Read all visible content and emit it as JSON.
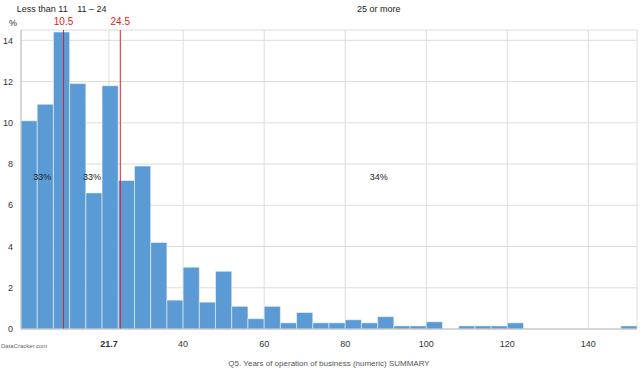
{
  "chart_data": {
    "type": "histogram",
    "xlabel": "Q5. Years of operation of business (numeric) SUMMARY",
    "ylabel": "%",
    "source": "DataCracker.com",
    "bins": [
      0,
      4,
      8,
      12,
      16,
      20,
      24,
      28,
      32,
      36,
      40,
      44,
      48,
      52,
      56,
      60,
      64,
      68,
      72,
      76,
      80,
      84,
      88,
      92,
      96,
      100,
      104,
      108,
      112,
      116,
      120,
      124,
      128,
      132,
      136,
      140,
      144,
      148,
      152
    ],
    "values": [
      10.1,
      10.9,
      14.4,
      11.9,
      6.6,
      11.8,
      7.2,
      7.9,
      4.2,
      1.4,
      3.0,
      1.3,
      2.8,
      1.1,
      0.5,
      1.1,
      0.3,
      0.8,
      0.3,
      0.3,
      0.45,
      0.3,
      0.6,
      0.15,
      0.15,
      0.35,
      0,
      0.15,
      0.15,
      0.15,
      0.3,
      0,
      0,
      0,
      0,
      0,
      0,
      0.15
    ],
    "color": "#5b9bd5",
    "xlim": [
      0,
      152
    ],
    "xticks": [
      21.7,
      40,
      60,
      80,
      100,
      120,
      140
    ],
    "mean": 21.7,
    "ylim": [
      0,
      14.5
    ],
    "yticks": [
      0,
      2,
      4,
      6,
      8,
      10,
      12,
      14
    ],
    "grid": true,
    "reference_lines": [
      {
        "value": 10.5,
        "label": "10.5",
        "color": "#e02020"
      },
      {
        "value": 24.5,
        "label": "24.5",
        "color": "#e02020"
      }
    ],
    "segments": [
      {
        "label": "Less than 11",
        "value": 33,
        "value_label": "33%"
      },
      {
        "label": "11 – 24",
        "value": 33,
        "value_label": "33%"
      },
      {
        "label": "25 or more",
        "value": 34,
        "value_label": "34%"
      }
    ]
  }
}
